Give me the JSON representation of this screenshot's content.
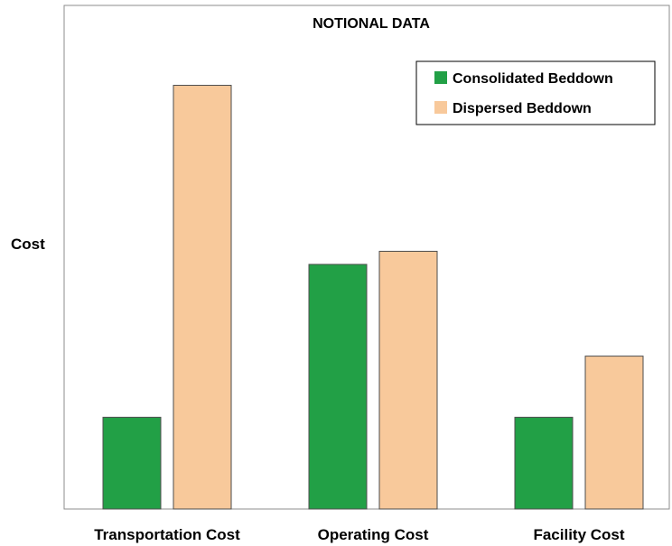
{
  "chart_data": {
    "type": "bar",
    "title": "NOTIONAL DATA",
    "ylabel": "Cost",
    "xlabel": "",
    "categories": [
      "Transportation Cost",
      "Operating Cost",
      "Facility Cost"
    ],
    "series": [
      {
        "name": "Consolidated Beddown",
        "color": "#22a046",
        "values": [
          0.21,
          0.56,
          0.21
        ]
      },
      {
        "name": "Dispersed Beddown",
        "color": "#f8c99b",
        "values": [
          0.97,
          0.59,
          0.35
        ]
      }
    ],
    "ylim": [
      0,
      1.0
    ],
    "grid": false,
    "legend_position": "top-right"
  }
}
